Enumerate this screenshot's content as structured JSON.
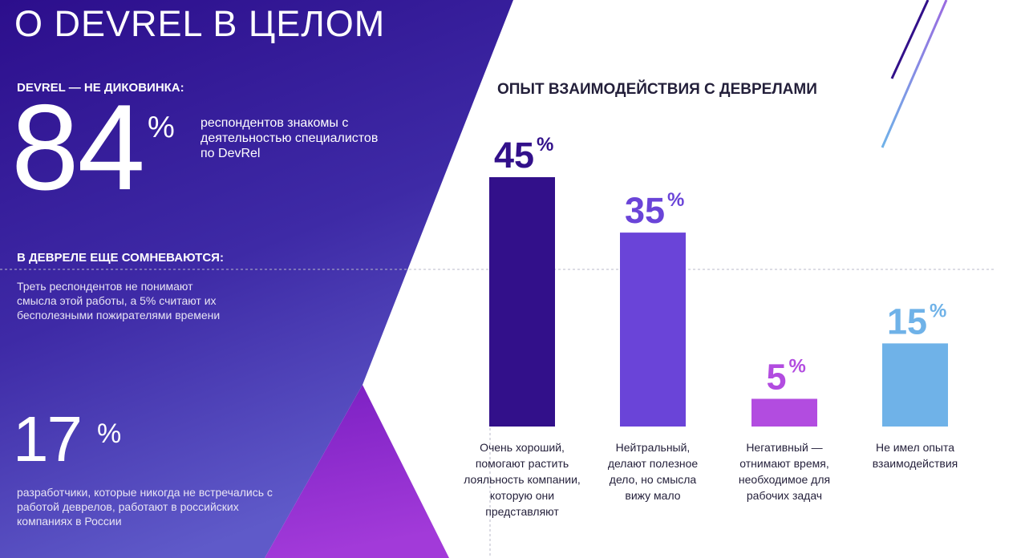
{
  "page": {
    "title": "О DEVREL В ЦЕЛОМ",
    "colors": {
      "panel_top": "#2a0f8a",
      "panel_bottom": "#5a4fc8",
      "accent_purple": "#9b30d8",
      "text_dark": "#231f3a"
    }
  },
  "stat1": {
    "label": "DEVREL — НЕ ДИКОВИНКА:",
    "value": "84",
    "unit": "%",
    "description": "респондентов знакомы с деятельностью специалистов по DevRel"
  },
  "stat2": {
    "label": "В ДЕВРЕЛЕ ЕЩЕ СОМНЕВАЮТСЯ:",
    "description": "Треть респондентов не понимают смысла этой работы, а 5% считают их бесполезными пожирателями времени"
  },
  "stat3": {
    "value": "17",
    "unit": "%",
    "description": "разработчики, которые никогда не встречались с работой деврелов, работают в российских компаниях в России"
  },
  "chart_data": {
    "type": "bar",
    "title": "ОПЫТ ВЗАИМОДЕЙСТВИЯ С ДЕВРЕЛАМИ",
    "unit": "%",
    "categories": [
      [
        "Очень хороший,",
        "помогают растить",
        "лояльность компании,",
        "которую они",
        "представляют"
      ],
      [
        "Нейтральный,",
        "делают полезное",
        "дело, но смысла",
        "вижу мало"
      ],
      [
        "Негативный —",
        "отнимают время,",
        "необходимое для",
        "рабочих задач"
      ],
      [
        "Не имел опыта",
        "взаимодействия"
      ]
    ],
    "values": [
      45,
      35,
      5,
      15
    ],
    "colors": [
      "#32108a",
      "#6a44d8",
      "#b24ce0",
      "#6fb2e8"
    ],
    "ylim": [
      0,
      45
    ],
    "grid": false,
    "legend": "none"
  }
}
